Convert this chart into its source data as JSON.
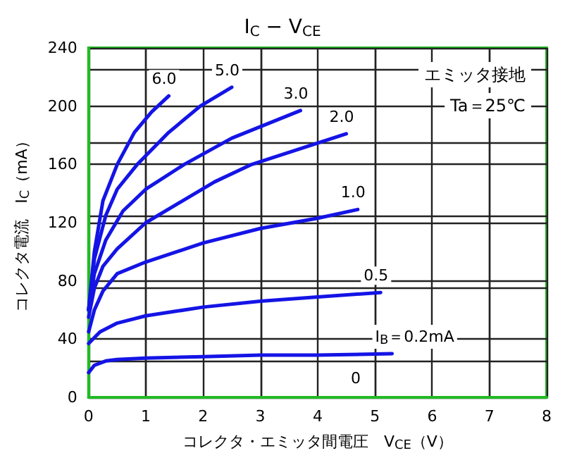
{
  "chart_data": {
    "type": "line",
    "title": "I$_{C}$ − V$_{CE}$",
    "xlabel": "コレクタ・エミッタ間電圧　V$_{CE}$（V）",
    "ylabel": "コレクタ電流　I$_{C}$（mA）",
    "xlim": [
      0,
      8
    ],
    "xticks": [
      0,
      1,
      2,
      3,
      4,
      5,
      6,
      7,
      8
    ],
    "ylim": [
      0,
      240
    ],
    "yticks": [
      0,
      40,
      80,
      120,
      160,
      200,
      240
    ],
    "grid": true,
    "legend": false,
    "marker": "none",
    "line_style": "solid",
    "series": [
      {
        "name": "6.0",
        "color": "#1414e6",
        "x": [
          0,
          0.1,
          0.25,
          0.5,
          0.8,
          1.1,
          1.4
        ],
        "values": [
          60,
          100,
          135,
          160,
          182,
          196,
          207
        ]
      },
      {
        "name": "5.0",
        "color": "#1414e6",
        "x": [
          0,
          0.1,
          0.3,
          0.5,
          0.85,
          1.4,
          1.95,
          2.5
        ],
        "values": [
          60,
          95,
          125,
          143,
          160,
          182,
          200,
          213
        ]
      },
      {
        "name": "3.0",
        "color": "#1414e6",
        "x": [
          0,
          0.1,
          0.3,
          0.6,
          1,
          1.67,
          2.5,
          3.7
        ],
        "values": [
          60,
          85,
          108,
          128,
          143,
          160,
          178,
          197
        ]
      },
      {
        "name": "2.0",
        "color": "#1414e6",
        "x": [
          0,
          0.1,
          0.25,
          0.5,
          1,
          2.2,
          2.85,
          3.4,
          4.5
        ],
        "values": [
          55,
          75,
          90,
          102,
          120,
          148,
          160,
          167,
          181
        ]
      },
      {
        "name": "1.0",
        "color": "#1414e6",
        "x": [
          0,
          0.1,
          0.25,
          0.5,
          1,
          2,
          3,
          4,
          4.7
        ],
        "values": [
          45,
          60,
          73,
          85,
          93,
          106,
          116,
          123,
          129
        ]
      },
      {
        "name": "0.5",
        "color": "#1414e6",
        "x": [
          0,
          0.2,
          0.5,
          1,
          1.5,
          2,
          3,
          4,
          5.1
        ],
        "values": [
          37,
          45,
          51,
          56,
          59,
          62,
          66,
          69,
          72
        ]
      },
      {
        "name": "I$_{B}$＝0.2mA",
        "color": "#1414e6",
        "x": [
          0,
          0.1,
          0.3,
          0.5,
          1,
          2,
          3,
          4,
          5.3
        ],
        "values": [
          17,
          22,
          25,
          26,
          27,
          28,
          29,
          29,
          30
        ]
      }
    ],
    "annotations": [
      "エミッタ接地",
      "Ta＝25℃",
      "0"
    ]
  }
}
